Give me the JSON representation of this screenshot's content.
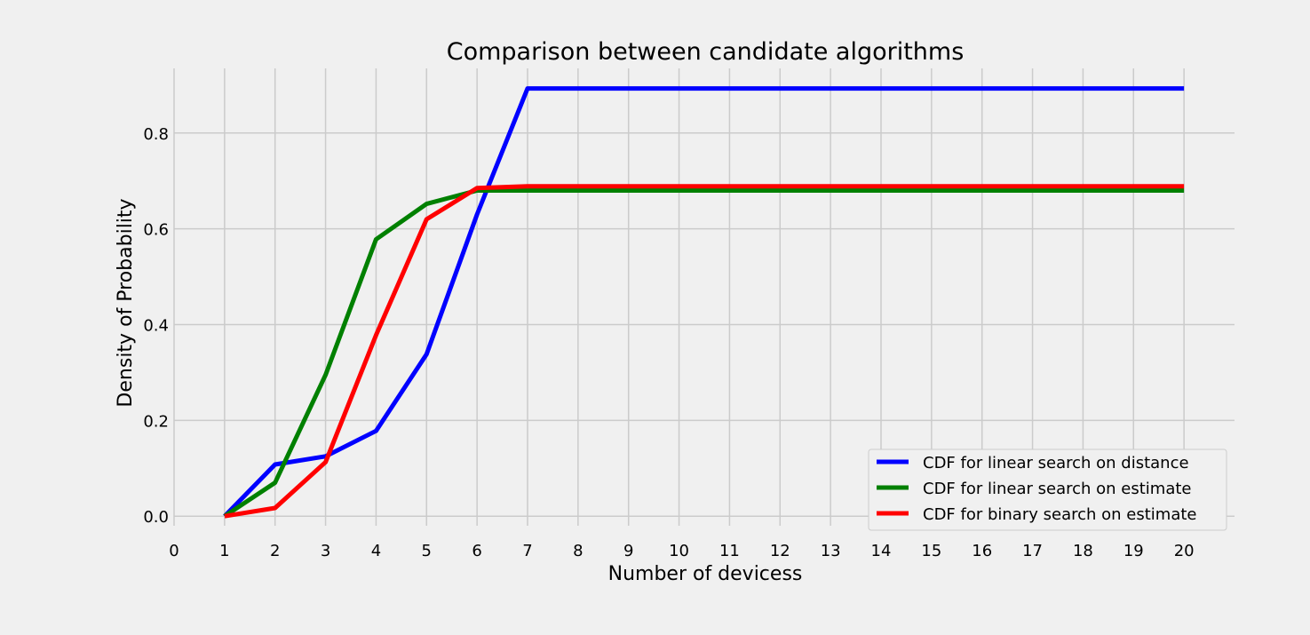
{
  "chart_data": {
    "type": "line",
    "title": "Comparison between candidate algorithms",
    "xlabel": "Number of devicess",
    "ylabel": "Density of Probability",
    "xlim": [
      0,
      21
    ],
    "ylim": [
      -0.02,
      0.935
    ],
    "xticks": [
      0,
      1,
      2,
      3,
      4,
      5,
      6,
      7,
      8,
      9,
      10,
      11,
      12,
      13,
      14,
      15,
      16,
      17,
      18,
      19,
      20
    ],
    "yticks": [
      0.0,
      0.2,
      0.4,
      0.6,
      0.8
    ],
    "ytick_labels": [
      "0.0",
      "0.2",
      "0.4",
      "0.6",
      "0.8"
    ],
    "grid": true,
    "legend_position": "lower-right",
    "x": [
      1,
      2,
      3,
      4,
      5,
      6,
      7,
      8,
      9,
      10,
      11,
      12,
      13,
      14,
      15,
      16,
      17,
      18,
      19,
      20
    ],
    "series": [
      {
        "name": "CDF for linear search on distance",
        "color": "#0000ff",
        "values": [
          0.0,
          0.108,
          0.125,
          0.178,
          0.338,
          0.63,
          0.893,
          0.893,
          0.893,
          0.893,
          0.893,
          0.893,
          0.893,
          0.893,
          0.893,
          0.893,
          0.893,
          0.893,
          0.893,
          0.893
        ]
      },
      {
        "name": "CDF for linear search on estimate",
        "color": "#008000",
        "values": [
          0.0,
          0.07,
          0.295,
          0.578,
          0.652,
          0.68,
          0.68,
          0.68,
          0.68,
          0.68,
          0.68,
          0.68,
          0.68,
          0.68,
          0.68,
          0.68,
          0.68,
          0.68,
          0.68,
          0.68
        ]
      },
      {
        "name": "CDF for binary search on estimate",
        "color": "#ff0000",
        "values": [
          0.0,
          0.017,
          0.113,
          0.378,
          0.62,
          0.685,
          0.689,
          0.689,
          0.689,
          0.689,
          0.689,
          0.689,
          0.689,
          0.689,
          0.689,
          0.689,
          0.689,
          0.689,
          0.689,
          0.689
        ]
      }
    ]
  }
}
